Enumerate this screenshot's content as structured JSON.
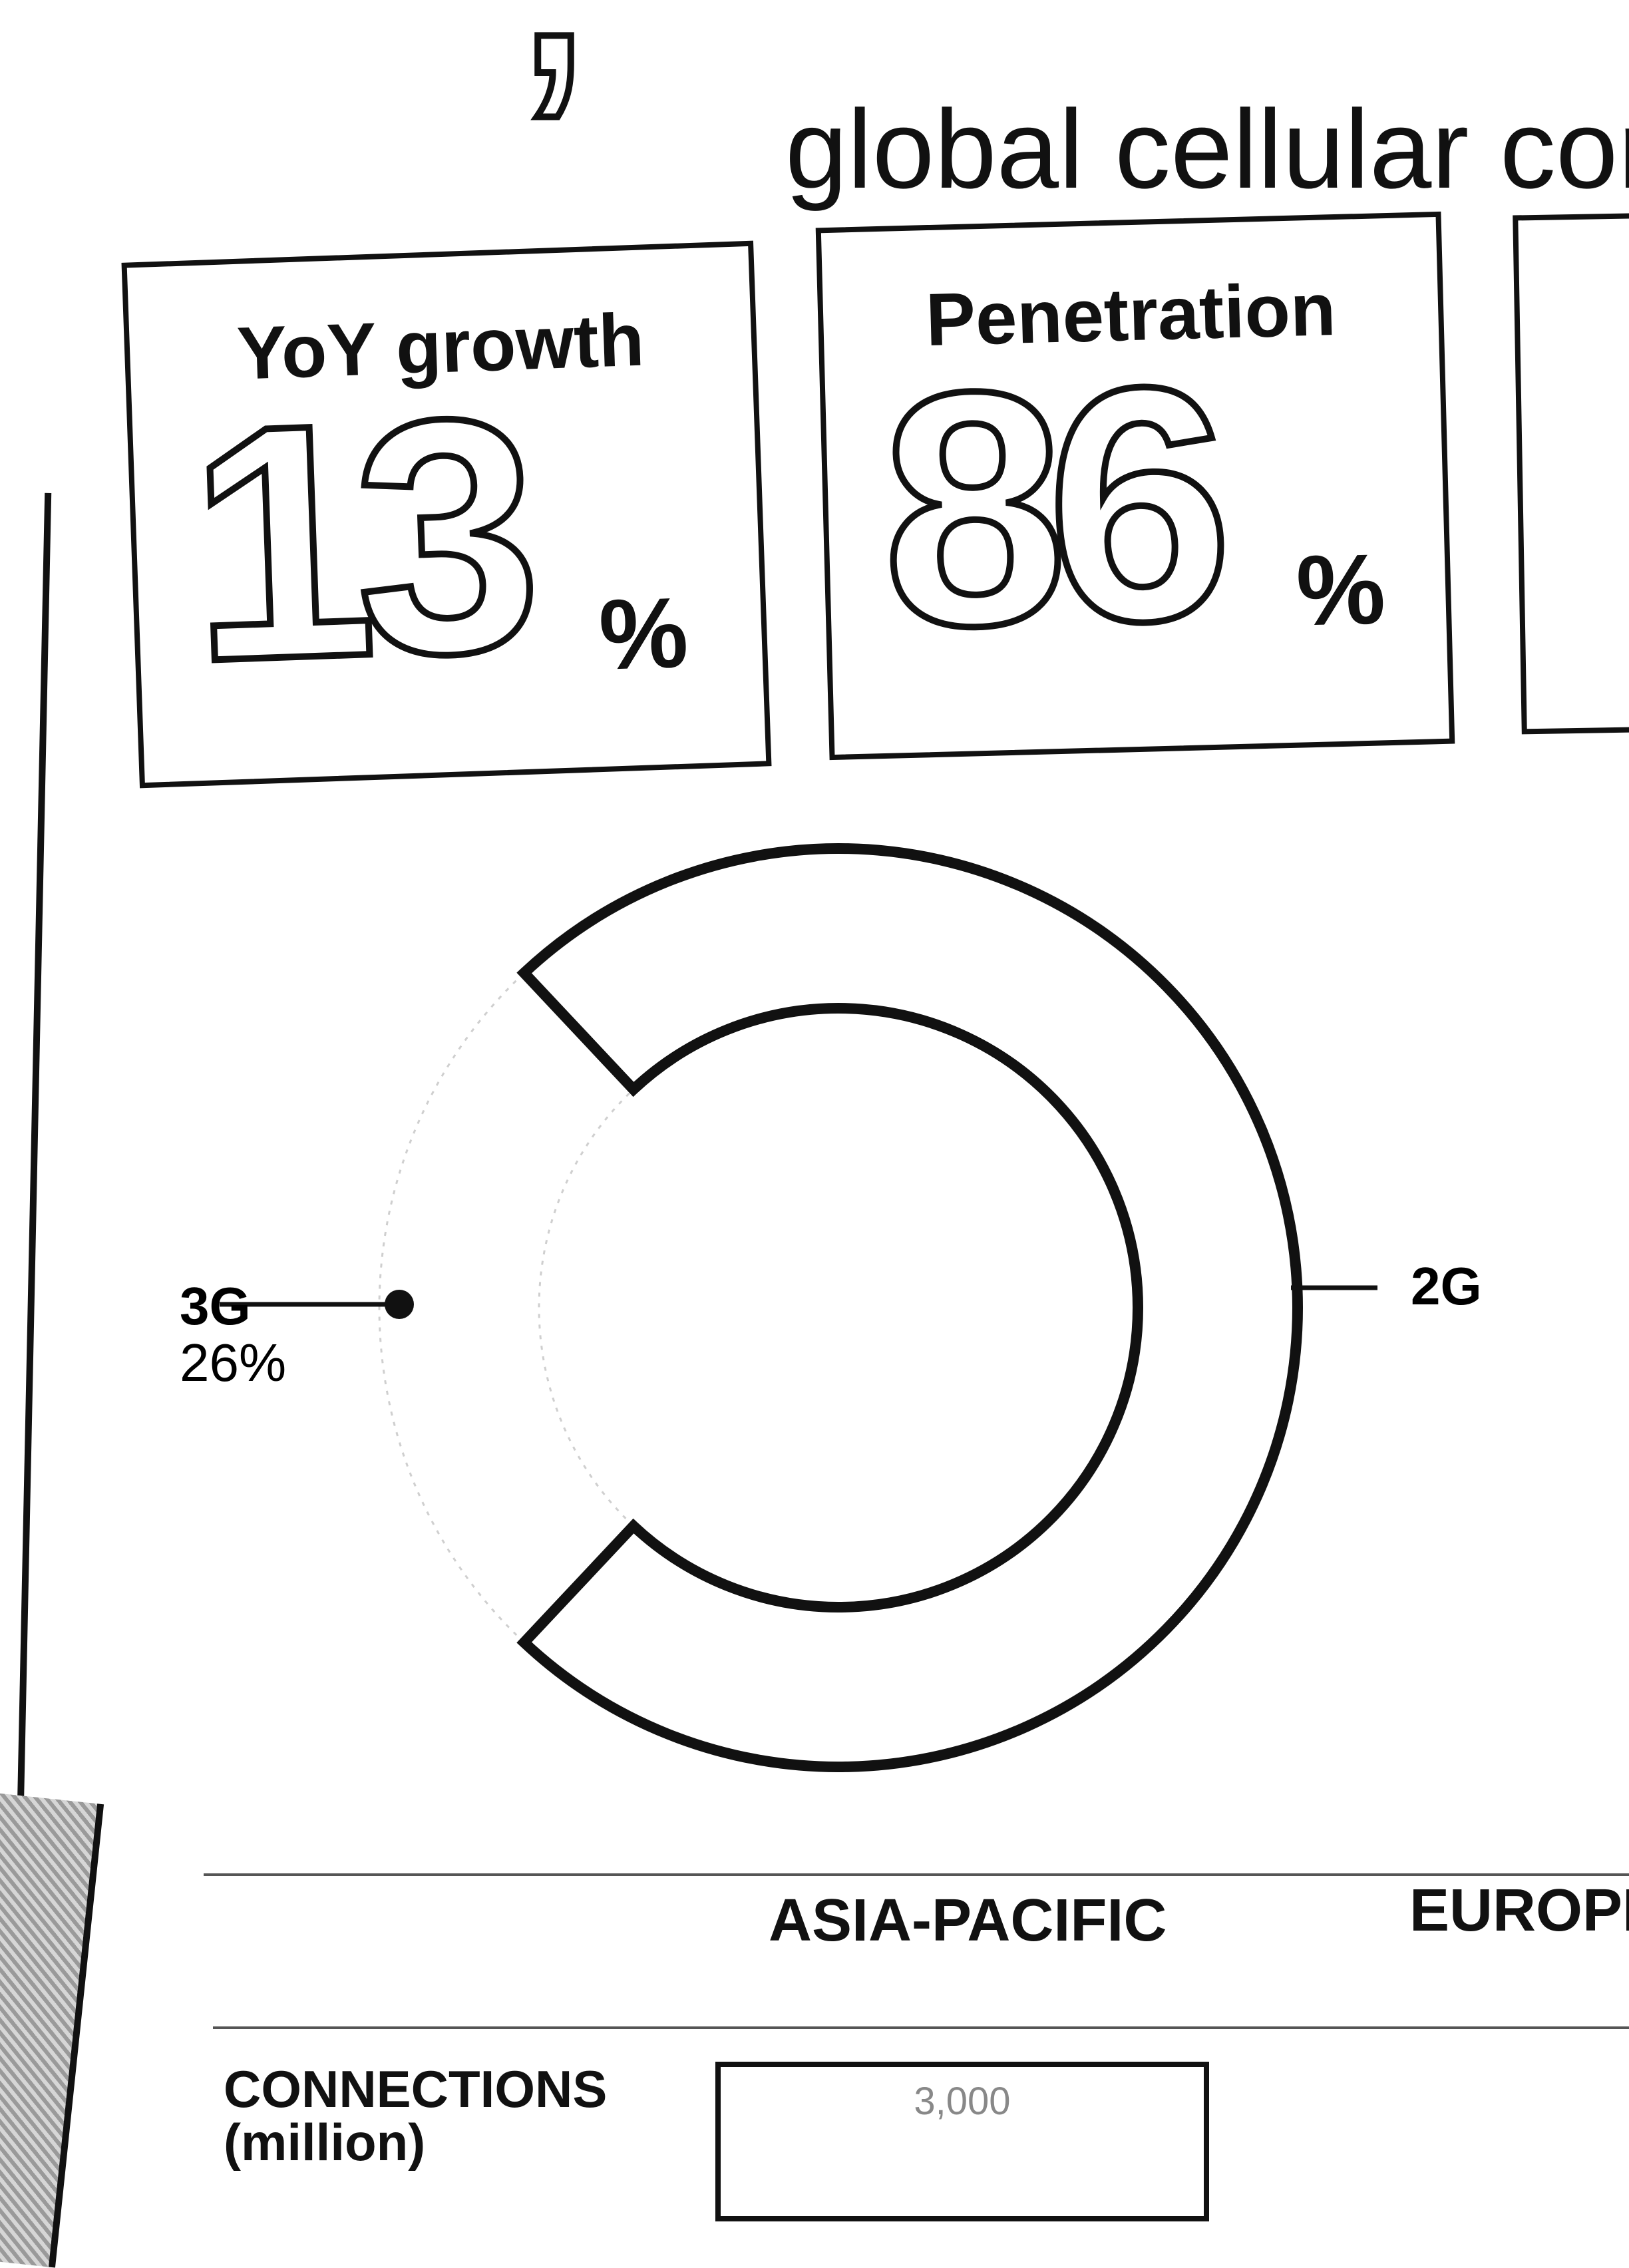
{
  "header": {
    "subtitle": "global cellular con"
  },
  "cards": [
    {
      "label": "YoY growth",
      "value": "13",
      "unit": "%"
    },
    {
      "label": "Penetration",
      "value": "86",
      "unit": "%"
    }
  ],
  "chart_data": {
    "type": "pie",
    "variant": "donut",
    "slices": [
      {
        "label": "3G",
        "value": 26,
        "display": "26%",
        "color": "#ffffff"
      },
      {
        "label": "2G",
        "value": 74,
        "display": "",
        "color": "#ffffff"
      }
    ],
    "grid": false,
    "legend": "callout-labels"
  },
  "table": {
    "columns": [
      "ASIA-PACIFIC",
      "EUROPE"
    ],
    "row_label_line1": "CONNECTIONS",
    "row_label_line2": "(million)",
    "first_value": "3,000"
  }
}
